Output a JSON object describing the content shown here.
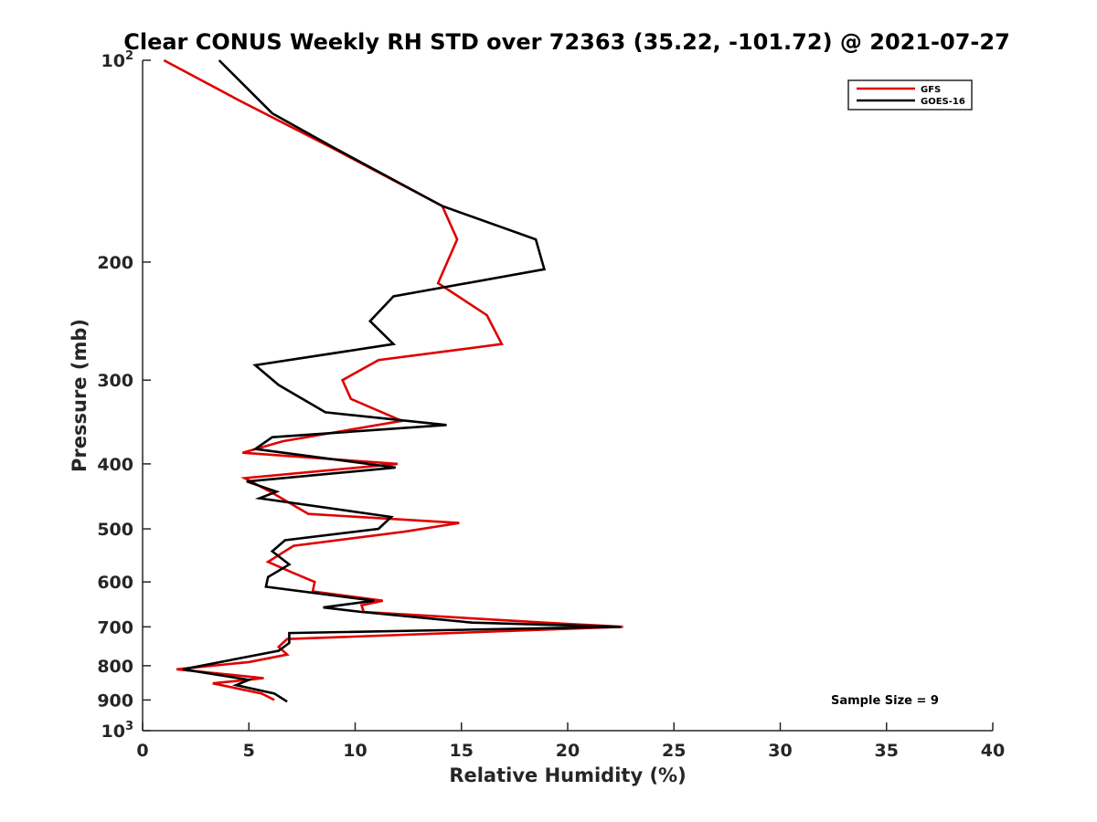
{
  "chart_data": {
    "type": "line",
    "title": "Clear CONUS Weekly RH STD over 72363 (35.22, -101.72) @ 2021-07-27",
    "xlabel": "Relative Humidity (%)",
    "ylabel": "Pressure (mb)",
    "xlim": [
      0,
      40
    ],
    "ylim": [
      100,
      1000
    ],
    "y_scale": "log",
    "y_reversed": true,
    "grid": false,
    "legend_position": "top-right",
    "x_ticks": [
      "0",
      "5",
      "10",
      "15",
      "20",
      "25",
      "30",
      "35",
      "40"
    ],
    "y_ticks": [
      {
        "value": 100,
        "base": "10",
        "exp": "2"
      },
      {
        "value": 200,
        "label": "200"
      },
      {
        "value": 300,
        "label": "300"
      },
      {
        "value": 400,
        "label": "400"
      },
      {
        "value": 500,
        "label": "500"
      },
      {
        "value": 600,
        "label": "600"
      },
      {
        "value": 700,
        "label": "700"
      },
      {
        "value": 800,
        "label": "800"
      },
      {
        "value": 900,
        "label": "900"
      },
      {
        "value": 1000,
        "base": "10",
        "exp": "3"
      }
    ],
    "annotation": "Sample Size = 9",
    "series": [
      {
        "name": "GFS",
        "color": "#e00000",
        "points": [
          [
            1.0,
            100
          ],
          [
            4.6,
            115
          ],
          [
            8.9,
            135
          ],
          [
            14.1,
            165
          ],
          [
            14.8,
            185
          ],
          [
            13.9,
            215
          ],
          [
            16.2,
            240
          ],
          [
            16.9,
            265
          ],
          [
            11.1,
            280
          ],
          [
            9.4,
            300
          ],
          [
            9.8,
            320
          ],
          [
            12.2,
            345
          ],
          [
            6.6,
            370
          ],
          [
            4.7,
            385
          ],
          [
            12.0,
            400
          ],
          [
            4.8,
            420
          ],
          [
            6.0,
            440
          ],
          [
            7.8,
            475
          ],
          [
            14.9,
            490
          ],
          [
            12.3,
            505
          ],
          [
            7.1,
            530
          ],
          [
            5.9,
            560
          ],
          [
            7.0,
            580
          ],
          [
            8.1,
            600
          ],
          [
            8.0,
            620
          ],
          [
            11.3,
            640
          ],
          [
            10.3,
            650
          ],
          [
            10.4,
            665
          ],
          [
            18.9,
            690
          ],
          [
            22.6,
            700
          ],
          [
            6.8,
            730
          ],
          [
            6.4,
            750
          ],
          [
            6.8,
            770
          ],
          [
            5.0,
            790
          ],
          [
            1.6,
            810
          ],
          [
            5.7,
            835
          ],
          [
            3.3,
            850
          ],
          [
            5.6,
            880
          ],
          [
            6.2,
            900
          ]
        ]
      },
      {
        "name": "GOES-16",
        "color": "#000000",
        "points": [
          [
            3.6,
            100
          ],
          [
            6.1,
            120
          ],
          [
            9.0,
            135
          ],
          [
            14.1,
            165
          ],
          [
            18.5,
            185
          ],
          [
            18.9,
            205
          ],
          [
            11.8,
            225
          ],
          [
            10.7,
            245
          ],
          [
            11.8,
            265
          ],
          [
            5.3,
            285
          ],
          [
            6.4,
            305
          ],
          [
            8.6,
            335
          ],
          [
            14.3,
            350
          ],
          [
            6.1,
            365
          ],
          [
            5.3,
            380
          ],
          [
            11.9,
            405
          ],
          [
            4.9,
            425
          ],
          [
            6.3,
            440
          ],
          [
            5.5,
            450
          ],
          [
            11.7,
            480
          ],
          [
            11.1,
            500
          ],
          [
            6.7,
            520
          ],
          [
            6.1,
            540
          ],
          [
            6.9,
            565
          ],
          [
            5.9,
            590
          ],
          [
            5.8,
            610
          ],
          [
            10.9,
            640
          ],
          [
            8.5,
            655
          ],
          [
            10.3,
            665
          ],
          [
            15.5,
            690
          ],
          [
            22.5,
            700
          ],
          [
            6.9,
            715
          ],
          [
            6.9,
            740
          ],
          [
            6.4,
            760
          ],
          [
            1.9,
            810
          ],
          [
            5.0,
            840
          ],
          [
            4.4,
            855
          ],
          [
            6.2,
            880
          ],
          [
            6.8,
            905
          ]
        ]
      }
    ]
  }
}
